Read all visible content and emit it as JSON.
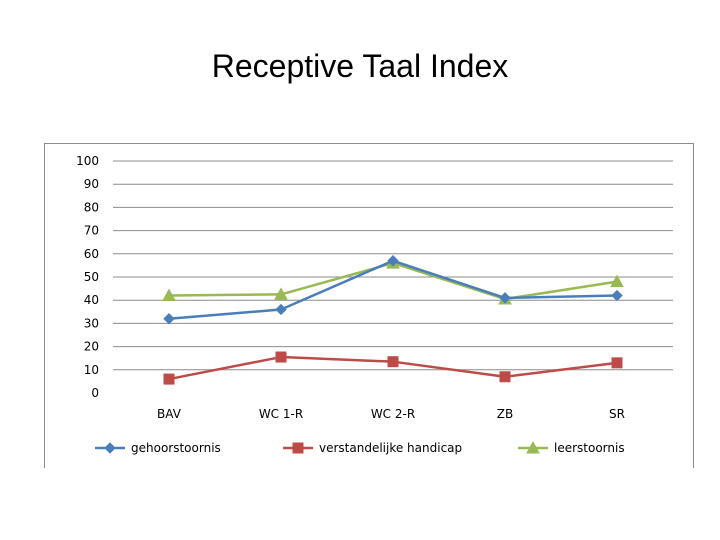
{
  "slide": {
    "title": "Receptive Taal Index"
  },
  "chart_data": {
    "type": "line",
    "title": "",
    "xlabel": "",
    "ylabel": "",
    "categories": [
      "BAV",
      "WC 1-R",
      "WC 2-R",
      "ZB",
      "SR"
    ],
    "ylim": [
      0,
      100
    ],
    "yticks": [
      0,
      10,
      20,
      30,
      40,
      50,
      60,
      70,
      80,
      90,
      100
    ],
    "grid": true,
    "legend_position": "bottom",
    "series": [
      {
        "name": "gehoorstoornis",
        "values": [
          32,
          36,
          57,
          41,
          42
        ],
        "color": "#4a7ebb",
        "marker": "diamond"
      },
      {
        "name": "verstandelijke handicap",
        "values": [
          6,
          15.5,
          13.5,
          7,
          13
        ],
        "color": "#be4b48",
        "marker": "square"
      },
      {
        "name": "leerstoornis",
        "values": [
          42,
          42.5,
          56,
          40.5,
          48
        ],
        "color": "#98b954",
        "marker": "triangle"
      }
    ]
  }
}
